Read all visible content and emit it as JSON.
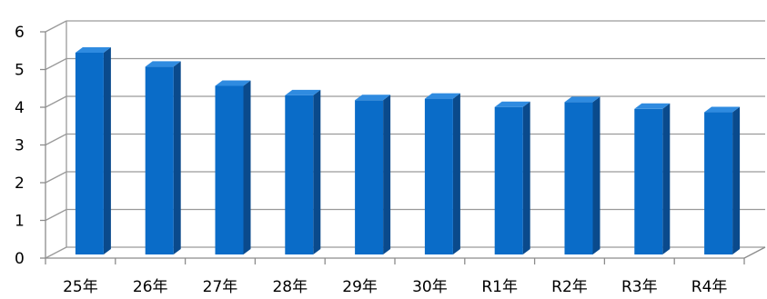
{
  "chart_data": {
    "type": "bar",
    "style": "3d-column",
    "categories": [
      "25年",
      "26年",
      "27年",
      "28年",
      "29年",
      "30年",
      "R1年",
      "R2年",
      "R3年",
      "R4年"
    ],
    "values": [
      5.35,
      4.98,
      4.47,
      4.22,
      4.09,
      4.13,
      3.91,
      4.04,
      3.86,
      3.77
    ],
    "title": "",
    "xlabel": "",
    "ylabel": "",
    "ylim": [
      0,
      6
    ],
    "yticks": [
      0,
      1,
      2,
      3,
      4,
      5,
      6
    ],
    "grid": true,
    "legend": "none",
    "colors": {
      "bar_front": "#0A6CC8",
      "bar_side": "#0A4A8C",
      "bar_top": "#2F8BE0",
      "gridline": "#9A9A9A",
      "axis": "#8C8C8C",
      "text": "#000000"
    }
  }
}
